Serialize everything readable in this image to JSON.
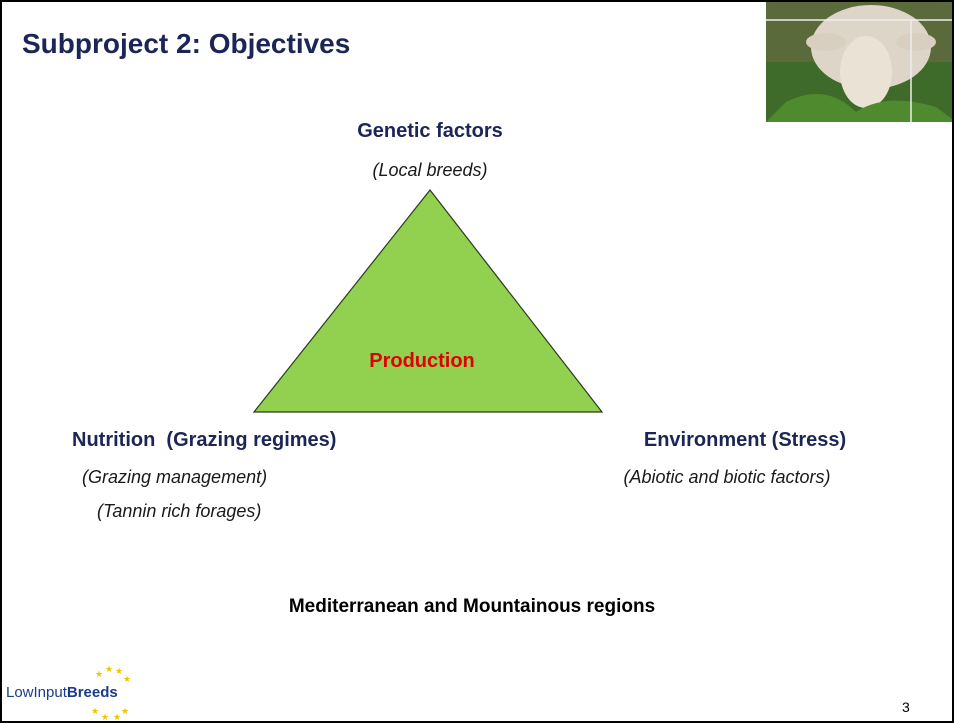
{
  "header": {
    "title": "Subproject 2: Objectives"
  },
  "diagram": {
    "center": "Production",
    "top": {
      "label": "Genetic factors",
      "notes": [
        "(Local breeds)"
      ]
    },
    "left": {
      "label": "Nutrition  (Grazing regimes)",
      "notes": [
        "(Grazing management)",
        "(Tannin rich forages)"
      ]
    },
    "right": {
      "label": "Environment (Stress)",
      "notes": [
        "(Abiotic and biotic factors)"
      ]
    }
  },
  "context": "Mediterranean and Mountainous regions",
  "footer": {
    "logo": {
      "prefix": "LowInput",
      "emphasis": "Breeds"
    },
    "page_number": 3
  }
}
